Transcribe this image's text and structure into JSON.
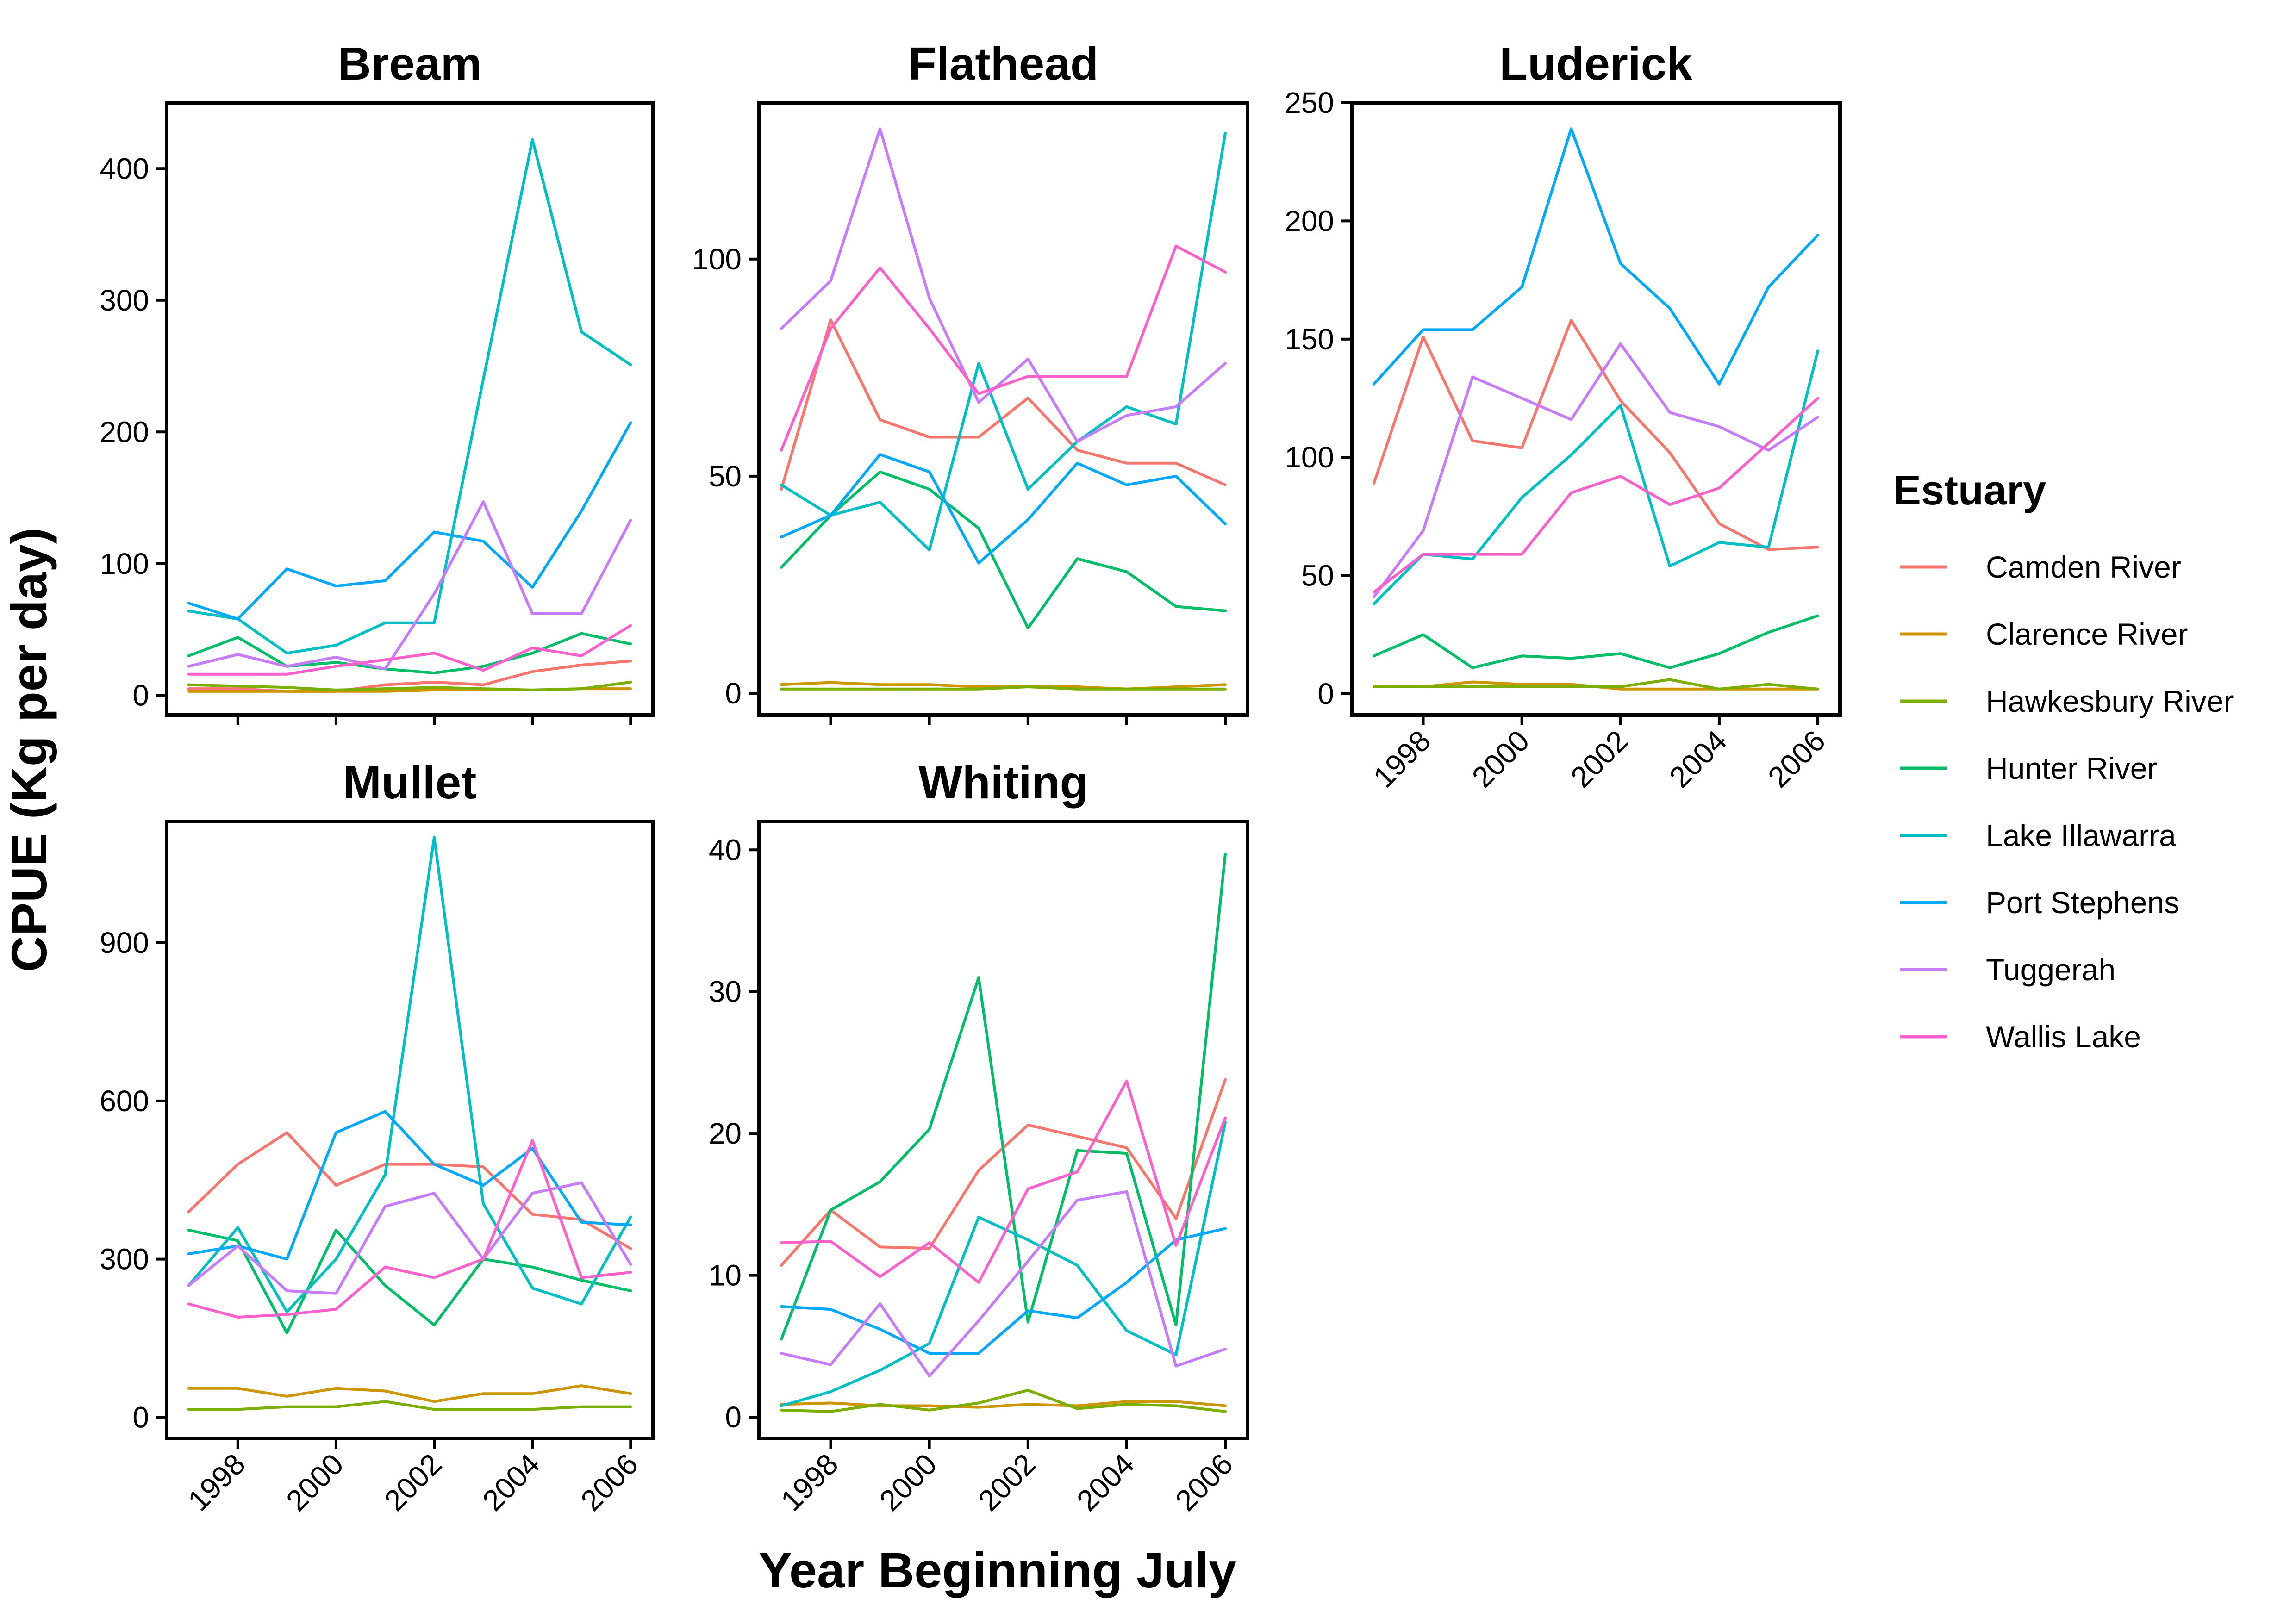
{
  "figure": {
    "xlabel": "Year Beginning July",
    "ylabel": "CPUE (Kg per day)",
    "legend_title": "Estuary",
    "legend_placement": "right"
  },
  "estuaries": [
    {
      "name": "Camden River",
      "color": "#F8766D"
    },
    {
      "name": "Clarence River",
      "color": "#CD9600"
    },
    {
      "name": "Hawkesbury River",
      "color": "#7CAE00"
    },
    {
      "name": "Hunter River",
      "color": "#00BE67"
    },
    {
      "name": "Lake Illawarra",
      "color": "#00BFC4"
    },
    {
      "name": "Port Stephens",
      "color": "#00A9FF"
    },
    {
      "name": "Tuggerah",
      "color": "#C77CFF"
    },
    {
      "name": "Wallis Lake",
      "color": "#FF61CC"
    }
  ],
  "chart_data": [
    {
      "type": "line",
      "title": "Bream",
      "x": [
        1997,
        1998,
        1999,
        2000,
        2001,
        2002,
        2003,
        2004,
        2005,
        2006
      ],
      "xticks": [
        1998,
        2000,
        2002,
        2004,
        2006
      ],
      "ylim": [
        -15,
        450
      ],
      "yticks": [
        0,
        100,
        200,
        300,
        400
      ],
      "show_x_ticks": false,
      "series": [
        {
          "name": "Camden River",
          "values": [
            5,
            5,
            3,
            3,
            8,
            10,
            8,
            18,
            23,
            26
          ]
        },
        {
          "name": "Clarence River",
          "values": [
            3,
            3,
            3,
            3,
            3,
            4,
            4,
            4,
            5,
            5
          ]
        },
        {
          "name": "Hawkesbury River",
          "values": [
            8,
            7,
            6,
            4,
            5,
            6,
            5,
            4,
            5,
            10
          ]
        },
        {
          "name": "Hunter River",
          "values": [
            30,
            44,
            22,
            25,
            20,
            17,
            22,
            32,
            47,
            39
          ]
        },
        {
          "name": "Lake Illawarra",
          "values": [
            64,
            58,
            32,
            38,
            55,
            55,
            240,
            422,
            276,
            251
          ]
        },
        {
          "name": "Port Stephens",
          "values": [
            70,
            58,
            96,
            83,
            87,
            124,
            117,
            82,
            140,
            207
          ]
        },
        {
          "name": "Tuggerah",
          "values": [
            22,
            31,
            22,
            29,
            20,
            77,
            147,
            62,
            62,
            133
          ]
        },
        {
          "name": "Wallis Lake",
          "values": [
            16,
            16,
            16,
            22,
            27,
            32,
            19,
            36,
            30,
            53
          ]
        }
      ]
    },
    {
      "type": "line",
      "title": "Flathead",
      "x": [
        1997,
        1998,
        1999,
        2000,
        2001,
        2002,
        2003,
        2004,
        2005,
        2006
      ],
      "xticks": [
        1998,
        2000,
        2002,
        2004,
        2006
      ],
      "ylim": [
        -5,
        136
      ],
      "yticks": [
        0,
        50,
        100
      ],
      "show_x_ticks": false,
      "series": [
        {
          "name": "Camden River",
          "values": [
            47,
            86,
            63,
            59,
            59,
            68,
            56,
            53,
            53,
            48
          ]
        },
        {
          "name": "Clarence River",
          "values": [
            2,
            2.5,
            2,
            2,
            1.5,
            1.5,
            1.5,
            1,
            1.5,
            2
          ]
        },
        {
          "name": "Hawkesbury River",
          "values": [
            1,
            1,
            1,
            1,
            1,
            1.5,
            1,
            1,
            1,
            1
          ]
        },
        {
          "name": "Hunter River",
          "values": [
            29,
            41,
            51,
            47,
            38,
            15,
            31,
            28,
            20,
            19
          ]
        },
        {
          "name": "Lake Illawarra",
          "values": [
            48,
            41,
            44,
            33,
            76,
            47,
            58,
            66,
            62,
            129
          ]
        },
        {
          "name": "Port Stephens",
          "values": [
            36,
            41,
            55,
            51,
            30,
            40,
            53,
            48,
            50,
            39
          ]
        },
        {
          "name": "Tuggerah",
          "values": [
            84,
            95,
            130,
            91,
            67,
            77,
            58,
            64,
            66,
            76
          ]
        },
        {
          "name": "Wallis Lake",
          "values": [
            56,
            84,
            98,
            84,
            69,
            73,
            73,
            73,
            103,
            97
          ]
        }
      ]
    },
    {
      "type": "line",
      "title": "Luderick",
      "x": [
        1997,
        1998,
        1999,
        2000,
        2001,
        2002,
        2003,
        2004,
        2005,
        2006
      ],
      "xticks": [
        1998,
        2000,
        2002,
        2004,
        2006
      ],
      "ylim": [
        -9,
        250
      ],
      "yticks": [
        0,
        50,
        100,
        150,
        200,
        250
      ],
      "show_x_ticks": true,
      "series": [
        {
          "name": "Camden River",
          "values": [
            89,
            151,
            107,
            104,
            158,
            124,
            102,
            72,
            61,
            62
          ]
        },
        {
          "name": "Clarence River",
          "values": [
            3,
            3,
            5,
            4,
            4,
            2,
            2,
            2,
            2,
            2
          ]
        },
        {
          "name": "Hawkesbury River",
          "values": [
            3,
            3,
            3,
            3,
            3,
            3,
            6,
            2,
            4,
            2
          ]
        },
        {
          "name": "Hunter River",
          "values": [
            16,
            25,
            11,
            16,
            15,
            17,
            11,
            17,
            26,
            33
          ]
        },
        {
          "name": "Lake Illawarra",
          "values": [
            38,
            59,
            57,
            83,
            101,
            122,
            54,
            64,
            62,
            145
          ]
        },
        {
          "name": "Port Stephens",
          "values": [
            131,
            154,
            154,
            172,
            239,
            182,
            163,
            131,
            172,
            194
          ]
        },
        {
          "name": "Tuggerah",
          "values": [
            41,
            69,
            134,
            125,
            116,
            148,
            119,
            113,
            103,
            117
          ]
        },
        {
          "name": "Wallis Lake",
          "values": [
            43,
            59,
            59,
            59,
            85,
            92,
            80,
            87,
            106,
            125
          ]
        }
      ]
    },
    {
      "type": "line",
      "title": "Mullet",
      "x": [
        1997,
        1998,
        1999,
        2000,
        2001,
        2002,
        2003,
        2004,
        2005,
        2006
      ],
      "xticks": [
        1998,
        2000,
        2002,
        2004,
        2006
      ],
      "ylim": [
        -40,
        1130
      ],
      "yticks": [
        0,
        300,
        600,
        900
      ],
      "show_x_ticks": true,
      "series": [
        {
          "name": "Camden River",
          "values": [
            390,
            480,
            540,
            440,
            480,
            480,
            475,
            385,
            375,
            320
          ]
        },
        {
          "name": "Clarence River",
          "values": [
            55,
            55,
            40,
            55,
            50,
            30,
            45,
            45,
            60,
            45
          ]
        },
        {
          "name": "Hawkesbury River",
          "values": [
            15,
            15,
            20,
            20,
            30,
            15,
            15,
            15,
            20,
            20
          ]
        },
        {
          "name": "Hunter River",
          "values": [
            355,
            335,
            160,
            355,
            250,
            175,
            300,
            285,
            260,
            240
          ]
        },
        {
          "name": "Lake Illawarra",
          "values": [
            250,
            360,
            200,
            300,
            460,
            1100,
            405,
            245,
            215,
            380
          ]
        },
        {
          "name": "Port Stephens",
          "values": [
            310,
            325,
            300,
            540,
            580,
            480,
            440,
            510,
            370,
            365
          ]
        },
        {
          "name": "Tuggerah",
          "values": [
            250,
            325,
            240,
            235,
            400,
            425,
            300,
            425,
            445,
            290
          ]
        },
        {
          "name": "Wallis Lake",
          "values": [
            215,
            190,
            195,
            205,
            285,
            265,
            300,
            525,
            265,
            275
          ]
        }
      ]
    },
    {
      "type": "line",
      "title": "Whiting",
      "x": [
        1997,
        1998,
        1999,
        2000,
        2001,
        2002,
        2003,
        2004,
        2005,
        2006
      ],
      "xticks": [
        1998,
        2000,
        2002,
        2004,
        2006
      ],
      "ylim": [
        -1.5,
        42
      ],
      "yticks": [
        0,
        10,
        20,
        30,
        40
      ],
      "show_x_ticks": true,
      "series": [
        {
          "name": "Camden River",
          "values": [
            10.7,
            14.6,
            12.0,
            11.9,
            17.4,
            20.6,
            19.8,
            19.0,
            14.0,
            23.8
          ]
        },
        {
          "name": "Clarence River",
          "values": [
            0.9,
            1.0,
            0.8,
            0.8,
            0.7,
            0.9,
            0.8,
            1.1,
            1.1,
            0.8
          ]
        },
        {
          "name": "Hawkesbury River",
          "values": [
            0.5,
            0.4,
            0.9,
            0.5,
            1.0,
            1.9,
            0.6,
            0.9,
            0.8,
            0.4
          ]
        },
        {
          "name": "Hunter River",
          "values": [
            5.5,
            14.6,
            16.6,
            20.3,
            31.0,
            6.7,
            18.8,
            18.6,
            6.5,
            39.7
          ]
        },
        {
          "name": "Lake Illawarra",
          "values": [
            0.8,
            1.8,
            3.3,
            5.2,
            14.1,
            12.5,
            10.7,
            6.1,
            4.4,
            20.8
          ]
        },
        {
          "name": "Port Stephens",
          "values": [
            7.8,
            7.6,
            6.2,
            4.5,
            4.5,
            7.5,
            7.0,
            9.5,
            12.5,
            13.3
          ]
        },
        {
          "name": "Tuggerah",
          "values": [
            4.5,
            3.7,
            8.0,
            2.9,
            6.8,
            11.0,
            15.3,
            15.9,
            3.6,
            4.8
          ]
        },
        {
          "name": "Wallis Lake",
          "values": [
            12.3,
            12.4,
            9.9,
            12.3,
            9.5,
            16.1,
            17.3,
            23.7,
            12.1,
            21.1
          ]
        }
      ]
    }
  ]
}
